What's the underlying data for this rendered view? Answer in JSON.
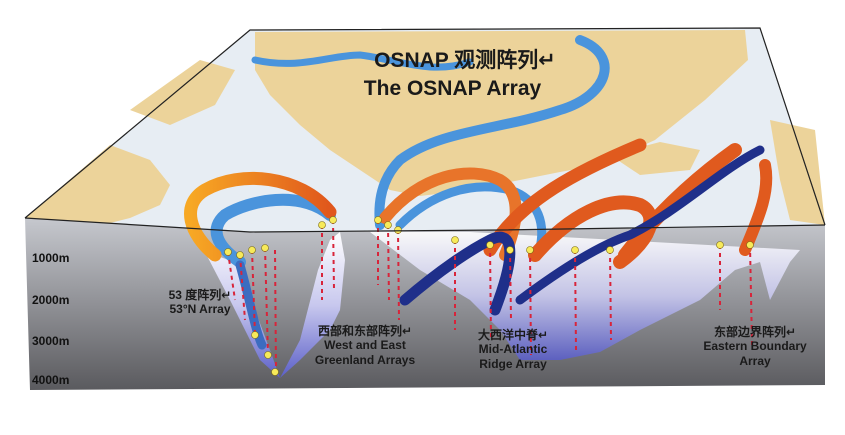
{
  "title": {
    "zh": "OSNAP 观测阵列↵",
    "en": "The OSNAP Array"
  },
  "depth_labels": [
    "1000m",
    "2000m",
    "3000m",
    "4000m"
  ],
  "arrays": [
    {
      "id": "53n",
      "zh": "53 度阵列↵",
      "en": "53°N Array"
    },
    {
      "id": "greenland",
      "zh": "西部和东部阵列↵",
      "en1": "West and East",
      "en2": "Greenland Arrays"
    },
    {
      "id": "mar",
      "zh": "大西洋中脊↵",
      "en1": "Mid-Atlantic",
      "en2": "Ridge Array"
    },
    {
      "id": "eastern",
      "zh": "东部边界阵列↵",
      "en1": "Eastern Boundary",
      "en2": "Array"
    }
  ],
  "colors": {
    "land": "#ecd39a",
    "ice": "#e8eef3",
    "warm": "#e05a1e",
    "warm_light": "#f2a030",
    "cold": "#4a90d9",
    "deep": "#1f2f8a",
    "ocean_section": "#a9a9ad",
    "mooring": "#e0223a",
    "float": "#f7ea5a"
  }
}
